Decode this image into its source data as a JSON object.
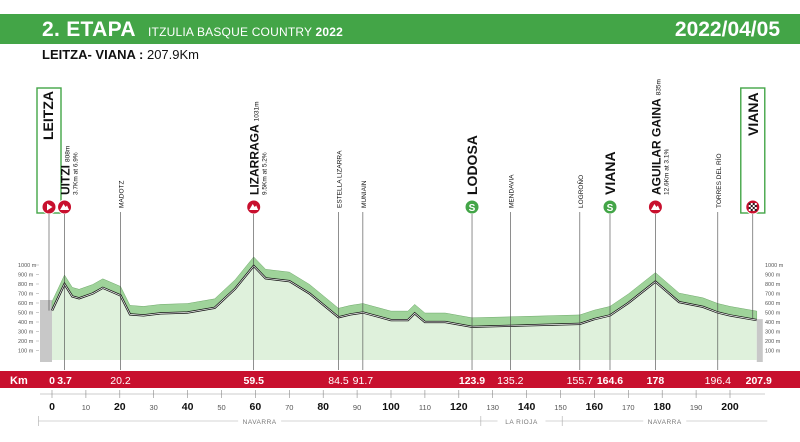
{
  "header": {
    "stage": "2. ETAPA",
    "race": "ITZULIA BASQUE COUNTRY",
    "year": "2022",
    "date": "2022/04/05"
  },
  "route": {
    "name": "LEITZA- VIANA :",
    "distance": "207.9Km"
  },
  "colors": {
    "header_green": "#43a547",
    "km_bar_red": "#c8102e",
    "climb_red": "#c8102e",
    "sprint_green": "#43a547",
    "profile_fill": "#dff1dc"
  },
  "km_bar": {
    "label": "Km"
  },
  "elevation_ticks": [
    "1000 m",
    "900 m",
    "800 m",
    "700 m",
    "600 m",
    "500 m",
    "400 m",
    "300 m",
    "200 m",
    "100 m"
  ],
  "x_ticks": [
    "0",
    "10",
    "20",
    "30",
    "40",
    "50",
    "60",
    "70",
    "80",
    "90",
    "100",
    "110",
    "120",
    "130",
    "140",
    "150",
    "160",
    "170",
    "180",
    "190",
    "200"
  ],
  "regions": [
    "NAVARRA",
    "LA RIOJA",
    "NAVARRA"
  ],
  "start": {
    "name": "LEITZA",
    "km": 0,
    "icon": "start-play-icon"
  },
  "finish": {
    "name": "VIANA",
    "km": "207.9",
    "icon": "finish-flag-icon"
  },
  "waypoints": [
    {
      "name": "UITZI",
      "sub1": "808m",
      "sub2": "3.7Km at 6.9%",
      "km": "3.7",
      "type": "climb"
    },
    {
      "name": "MADOTZ",
      "km": "20.2",
      "type": "town"
    },
    {
      "name": "LIZARRAGA",
      "sub1": "1031m",
      "sub2": "9.5Km at 5.2%",
      "km": "59.5",
      "type": "climb"
    },
    {
      "name": "ESTELLA LIZARRA",
      "km": "84.5",
      "type": "town"
    },
    {
      "name": "MUNIAIN",
      "km": "91.7",
      "type": "town"
    },
    {
      "name": "LODOSA",
      "km": "123.9",
      "type": "sprint"
    },
    {
      "name": "MENDAVIA",
      "km": "135.2",
      "type": "town"
    },
    {
      "name": "LOGROÑO",
      "km": "155.7",
      "type": "town"
    },
    {
      "name": "VIANA",
      "km": "164.6",
      "type": "sprint"
    },
    {
      "name": "AGUILAR GAINA",
      "sub1": "835m",
      "sub2": "12.6Km at 3.1%",
      "km": "178",
      "type": "climb"
    },
    {
      "name": "TORRES DEL RÍO",
      "km": "196.4",
      "type": "town"
    }
  ],
  "chart_data": {
    "type": "area",
    "xlabel": "Km",
    "ylabel": "",
    "xlim": [
      0,
      207.9
    ],
    "ylim": [
      0,
      1000
    ],
    "x": [
      0,
      3.7,
      6,
      8,
      12,
      15,
      20.2,
      23,
      27,
      32,
      40,
      48,
      54,
      59.5,
      63,
      70,
      76,
      84.5,
      88,
      91.7,
      100,
      105,
      107,
      110,
      116,
      123.9,
      135.2,
      145,
      155.7,
      160,
      164.6,
      170,
      178,
      185,
      192,
      196.4,
      200,
      207.9
    ],
    "y": [
      520,
      800,
      670,
      650,
      700,
      760,
      680,
      480,
      470,
      490,
      500,
      550,
      750,
      990,
      860,
      830,
      700,
      450,
      480,
      500,
      420,
      420,
      490,
      400,
      400,
      350,
      360,
      370,
      380,
      430,
      470,
      600,
      825,
      610,
      560,
      500,
      470,
      420
    ]
  }
}
